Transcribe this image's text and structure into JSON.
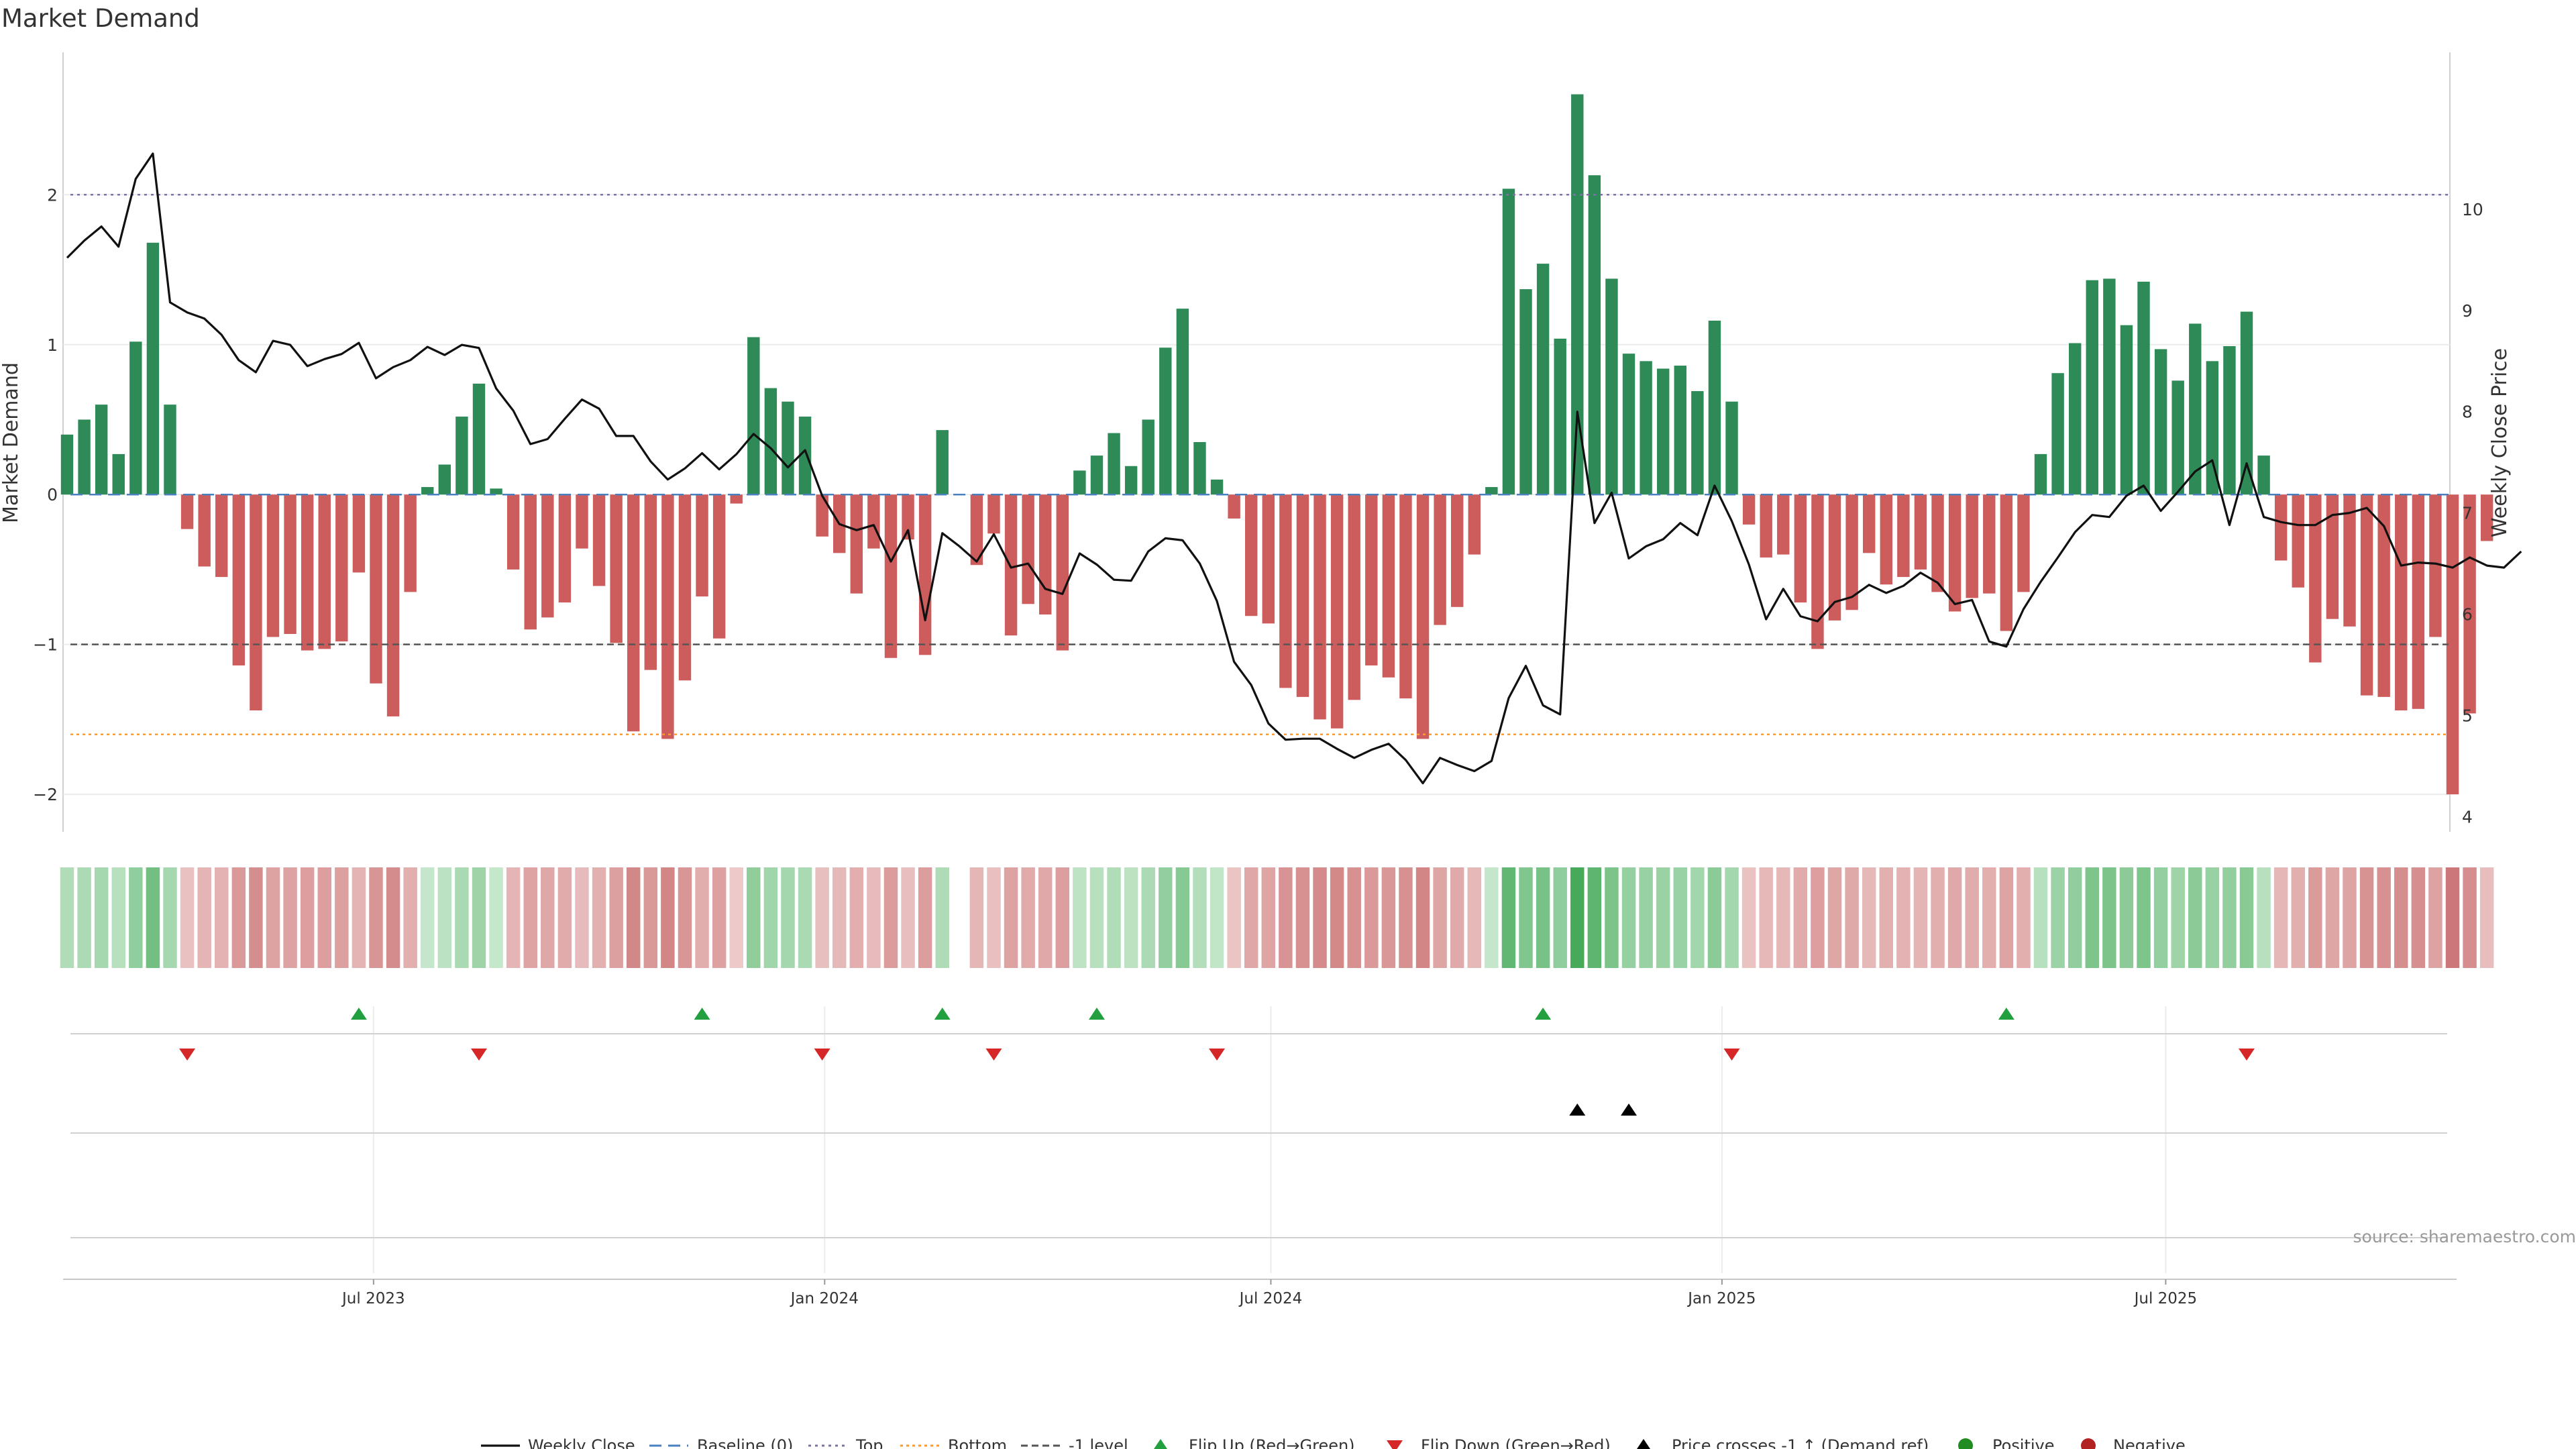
{
  "chart_data": {
    "type": "bar",
    "title": "Market Demand",
    "ylabel": "Market Demand",
    "y2label": "Weekly Close Price",
    "ylim": [
      -2.25,
      2.95
    ],
    "y2lim": [
      3.85,
      11.55
    ],
    "yticks": [
      2,
      1,
      0,
      -1,
      -2
    ],
    "ytick_labels": [
      "2",
      "1",
      "0",
      "−1",
      "−2"
    ],
    "y2ticks": [
      10,
      9,
      8,
      7,
      6,
      5,
      4
    ],
    "y2tick_labels": [
      "10",
      "9",
      "8",
      "7",
      "6",
      "5",
      "4"
    ],
    "x_start": "2023-02-26",
    "x_end": "2025-10-26",
    "xticks": [
      "2023-07-01",
      "2024-01-01",
      "2024-07-01",
      "2025-01-01",
      "2025-07-01"
    ],
    "xtick_labels": [
      "Jul 2023",
      "Jan 2024",
      "Jul 2024",
      "Jan 2025",
      "Jul 2025"
    ],
    "reference_lines": {
      "baseline": 0,
      "top": 2,
      "bottom": -1.6,
      "minus_one": -1
    },
    "colors": {
      "positive": "#2e8b57",
      "negative": "#cd5c5c",
      "close": "#111111",
      "top": "#8070a8",
      "bottom": "#ff9a30",
      "minus_one": "#555555",
      "baseline": "#4a80c0",
      "flip_up": "#22a040",
      "flip_down": "#d62728",
      "cross": "#000000",
      "positive_dot": "#228b22",
      "negative_dot": "#b22222"
    },
    "demand": [
      0.4,
      0.5,
      0.6,
      0.27,
      1.02,
      1.68,
      0.6,
      -0.23,
      -0.48,
      -0.55,
      -1.14,
      -1.44,
      -0.95,
      -0.93,
      -1.04,
      -1.03,
      -0.98,
      -0.52,
      -1.26,
      -1.48,
      -0.65,
      0.05,
      0.2,
      0.52,
      0.74,
      0.04,
      -0.5,
      -0.9,
      -0.82,
      -0.72,
      -0.36,
      -0.61,
      -0.99,
      -1.58,
      -1.17,
      -1.63,
      -1.24,
      -0.68,
      -0.96,
      -0.06,
      1.05,
      0.71,
      0.62,
      0.52,
      -0.28,
      -0.39,
      -0.66,
      -0.36,
      -1.09,
      -0.3,
      -1.07,
      0.43,
      0,
      -0.47,
      -0.26,
      -0.94,
      -0.73,
      -0.8,
      -1.04,
      0.16,
      0.26,
      0.41,
      0.19,
      0.5,
      0.98,
      1.24,
      0.35,
      0.1,
      -0.16,
      -0.81,
      -0.86,
      -1.29,
      -1.35,
      -1.5,
      -1.56,
      -1.37,
      -1.14,
      -1.22,
      -1.36,
      -1.63,
      -0.87,
      -0.75,
      -0.4,
      0.05,
      2.04,
      1.37,
      1.54,
      1.04,
      2.67,
      2.13,
      1.44,
      0.94,
      0.89,
      0.84,
      0.86,
      0.69,
      1.16,
      0.62,
      -0.2,
      -0.42,
      -0.4,
      -0.72,
      -1.03,
      -0.84,
      -0.77,
      -0.39,
      -0.6,
      -0.55,
      -0.5,
      -0.65,
      -0.78,
      -0.69,
      -0.66,
      -0.91,
      -0.65,
      0.27,
      0.81,
      1.01,
      1.43,
      1.44,
      1.13,
      1.42,
      0.97,
      0.76,
      1.14,
      0.89,
      0.99,
      1.22,
      0.26,
      -0.44,
      -0.62,
      -1.12,
      -0.83,
      -0.88,
      -1.34,
      -1.35,
      -1.44,
      -1.43,
      -0.95,
      -2.0,
      -1.46,
      -0.31
    ],
    "close": [
      9.52,
      9.69,
      9.83,
      9.63,
      10.3,
      10.55,
      9.08,
      8.98,
      8.92,
      8.76,
      8.51,
      8.39,
      8.7,
      8.66,
      8.45,
      8.52,
      8.57,
      8.68,
      8.33,
      8.44,
      8.51,
      8.64,
      8.56,
      8.66,
      8.63,
      8.23,
      8.01,
      7.68,
      7.73,
      7.93,
      8.12,
      8.03,
      7.76,
      7.76,
      7.51,
      7.33,
      7.44,
      7.59,
      7.43,
      7.58,
      7.78,
      7.64,
      7.45,
      7.62,
      7.17,
      6.89,
      6.83,
      6.88,
      6.52,
      6.83,
      5.94,
      6.8,
      6.67,
      6.52,
      6.79,
      6.46,
      6.5,
      6.25,
      6.2,
      6.6,
      6.49,
      6.34,
      6.33,
      6.62,
      6.75,
      6.73,
      6.5,
      6.13,
      5.53,
      5.3,
      4.92,
      4.76,
      4.77,
      4.77,
      4.67,
      4.58,
      4.66,
      4.72,
      4.56,
      4.33,
      4.58,
      4.51,
      4.45,
      4.55,
      5.17,
      5.49,
      5.1,
      5.01,
      8.0,
      6.9,
      7.2,
      6.55,
      6.67,
      6.74,
      6.9,
      6.78,
      7.27,
      6.92,
      6.49,
      5.95,
      6.25,
      5.98,
      5.93,
      6.12,
      6.17,
      6.29,
      6.21,
      6.28,
      6.41,
      6.31,
      6.1,
      6.14,
      5.73,
      5.68,
      6.05,
      6.32,
      6.56,
      6.81,
      6.98,
      6.96,
      7.17,
      7.27,
      7.02,
      7.21,
      7.41,
      7.52,
      6.88,
      7.49,
      6.96,
      6.91,
      6.88,
      6.88,
      6.98,
      7.0,
      7.05,
      6.87,
      6.48,
      6.51,
      6.5,
      6.46,
      6.56,
      6.48,
      6.46,
      6.62
    ],
    "flip_up": [
      "2023-06-25",
      "2023-11-12",
      "2024-02-18",
      "2024-04-21",
      "2024-10-20",
      "2025-04-27"
    ],
    "flip_down": [
      "2023-04-16",
      "2023-08-13",
      "2023-12-31",
      "2024-03-10",
      "2024-06-09",
      "2025-01-05",
      "2025-08-03"
    ],
    "price_crosses": [
      "2024-11-03",
      "2024-11-24"
    ],
    "legend": [
      "Weekly Close",
      "Baseline (0)",
      "Top",
      "Bottom",
      "-1 level",
      "Flip Up (Red→Green)",
      "Flip Down (Green→Red)",
      "Price crosses -1 ↑ (Demand ref)",
      "Positive",
      "Negative"
    ]
  },
  "source_text": "source: sharemaestro.com"
}
